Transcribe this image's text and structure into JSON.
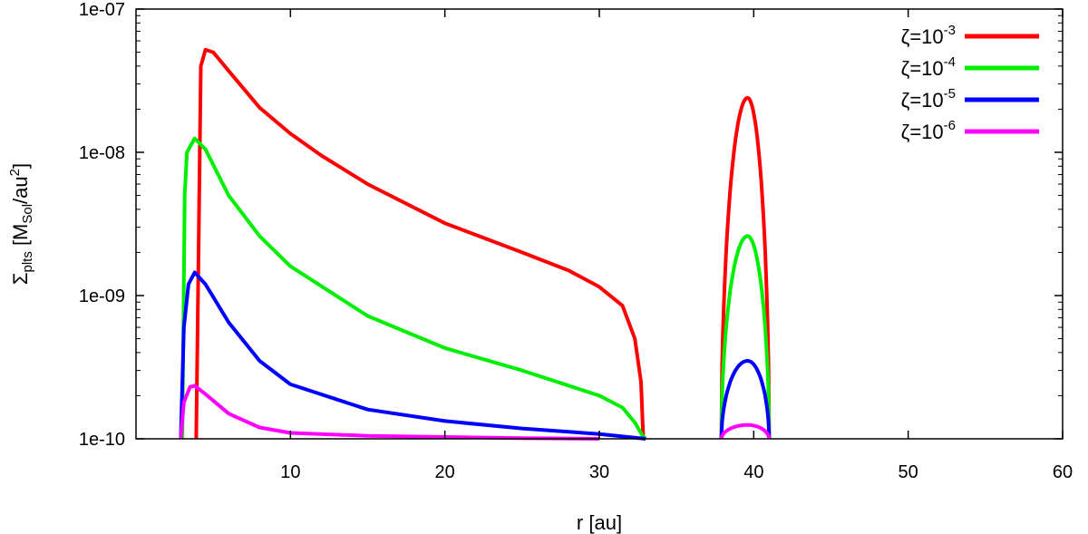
{
  "chart_data": {
    "type": "line",
    "title": "",
    "xlabel": "r [au]",
    "ylabel": {
      "base": "Σ",
      "base_sub": "plts",
      "pre": " [M",
      "unit_sub": "Sol",
      "mid": "/au",
      "unit_sup": "2",
      "post": "]"
    },
    "xlim": [
      0,
      60
    ],
    "ylim": [
      1e-10,
      1e-07
    ],
    "yscale": "log",
    "xticks": [
      10,
      20,
      30,
      40,
      50,
      60
    ],
    "xtick_labels": [
      "10",
      "20",
      "30",
      "40",
      "50",
      "60"
    ],
    "yticks": [
      1e-10,
      1e-09,
      1e-08,
      1e-07
    ],
    "ytick_labels": [
      "1e-10",
      "1e-09",
      "1e-08",
      "1e-07"
    ],
    "grid": false,
    "legend_position": "top-right",
    "series": [
      {
        "name": "ζ=10",
        "name_sup": "-3",
        "color": "#ff0000",
        "points": [
          [
            3.9,
            1e-10
          ],
          [
            4.05,
            2e-09
          ],
          [
            4.2,
            4e-08
          ],
          [
            4.5,
            5.2e-08
          ],
          [
            5,
            5e-08
          ],
          [
            6,
            3.7e-08
          ],
          [
            8,
            2.05e-08
          ],
          [
            10,
            1.35e-08
          ],
          [
            12,
            9.5e-09
          ],
          [
            15,
            6e-09
          ],
          [
            20,
            3.2e-09
          ],
          [
            25,
            2e-09
          ],
          [
            28,
            1.5e-09
          ],
          [
            30,
            1.15e-09
          ],
          [
            31.5,
            8.5e-10
          ],
          [
            32.3,
            5e-10
          ],
          [
            32.7,
            2.5e-10
          ],
          [
            32.85,
            1e-10
          ]
        ]
      },
      {
        "name": "ζ=10",
        "name_sup": "-4",
        "color": "#00ee00",
        "points": [
          [
            3.0,
            1e-10
          ],
          [
            3.15,
            5e-09
          ],
          [
            3.3,
            1e-08
          ],
          [
            3.8,
            1.25e-08
          ],
          [
            4.5,
            1.05e-08
          ],
          [
            6,
            5e-09
          ],
          [
            8,
            2.6e-09
          ],
          [
            10,
            1.6e-09
          ],
          [
            15,
            7.2e-10
          ],
          [
            20,
            4.3e-10
          ],
          [
            25,
            3e-10
          ],
          [
            30,
            2e-10
          ],
          [
            31.5,
            1.65e-10
          ],
          [
            32.3,
            1.3e-10
          ],
          [
            32.8,
            1.05e-10
          ],
          [
            33,
            1e-10
          ]
        ]
      },
      {
        "name": "ζ=10",
        "name_sup": "-5",
        "color": "#0000ff",
        "points": [
          [
            2.9,
            1e-10
          ],
          [
            3.1,
            6e-10
          ],
          [
            3.4,
            1.2e-09
          ],
          [
            3.8,
            1.45e-09
          ],
          [
            4.5,
            1.2e-09
          ],
          [
            6,
            6.5e-10
          ],
          [
            8,
            3.5e-10
          ],
          [
            10,
            2.4e-10
          ],
          [
            15,
            1.6e-10
          ],
          [
            20,
            1.33e-10
          ],
          [
            25,
            1.18e-10
          ],
          [
            30,
            1.08e-10
          ],
          [
            33,
            1e-10
          ]
        ]
      },
      {
        "name": "ζ=10",
        "name_sup": "-6",
        "color": "#ff00ff",
        "points": [
          [
            2.9,
            1e-10
          ],
          [
            3.1,
            1.8e-10
          ],
          [
            3.5,
            2.3e-10
          ],
          [
            3.8,
            2.35e-10
          ],
          [
            4.5,
            2.05e-10
          ],
          [
            6,
            1.5e-10
          ],
          [
            8,
            1.2e-10
          ],
          [
            10,
            1.1e-10
          ],
          [
            15,
            1.05e-10
          ],
          [
            20,
            1.03e-10
          ],
          [
            25,
            1.01e-10
          ],
          [
            30,
            1e-10
          ]
        ]
      }
    ],
    "ring": {
      "center": 39.6,
      "inner": 37.9,
      "outer": 41.0,
      "peaks": [
        2.4e-08,
        2.6e-09,
        3.5e-10,
        1.25e-10
      ]
    }
  }
}
